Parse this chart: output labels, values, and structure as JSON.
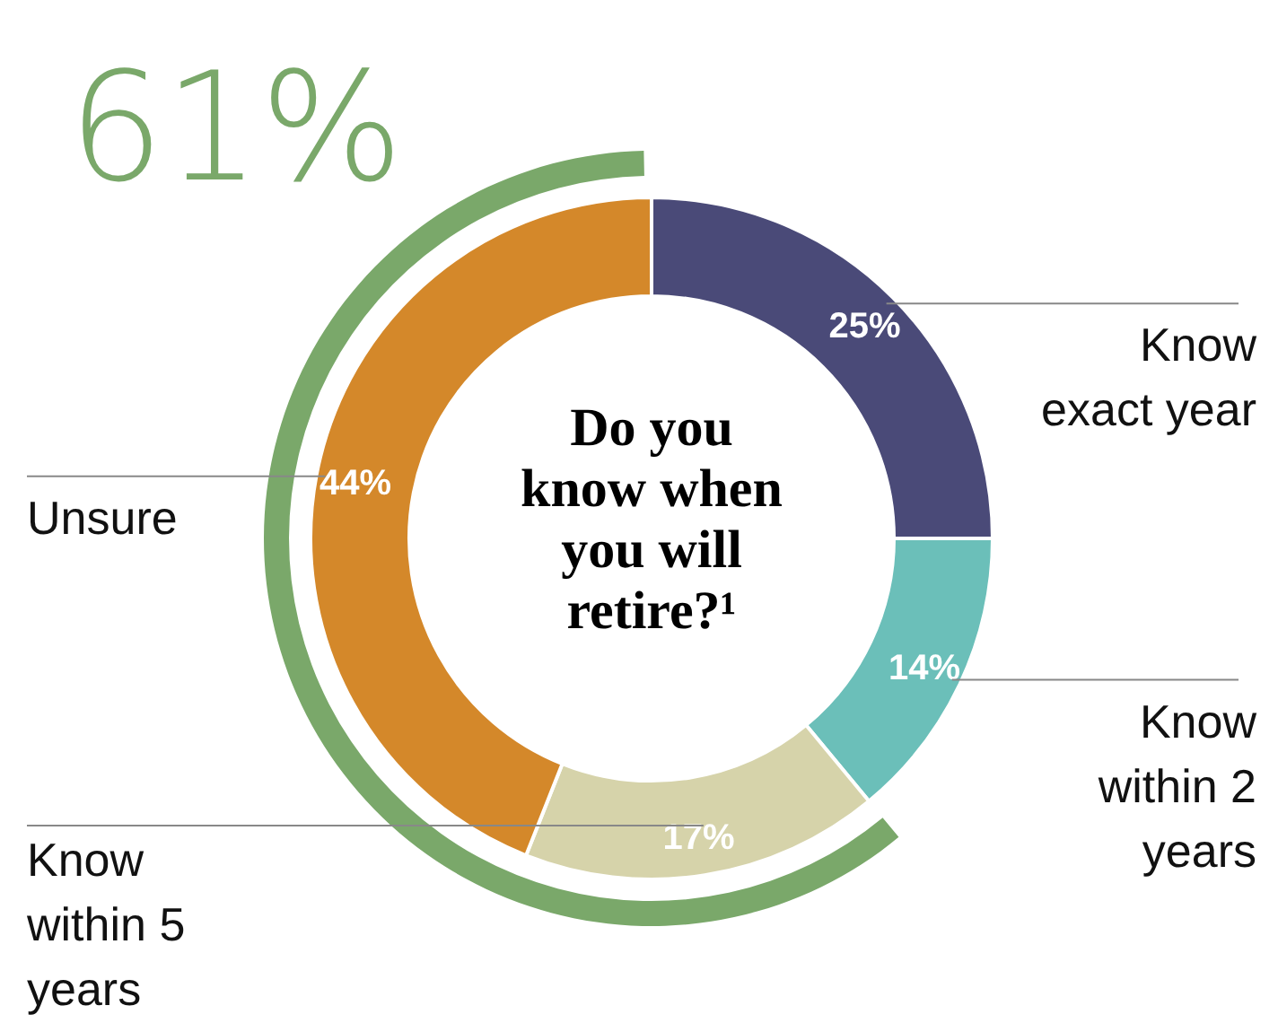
{
  "chart_data": {
    "type": "donut",
    "title": "Do you know when you will retire?¹",
    "categories": [
      "Know exact year",
      "Know within 2 years",
      "Know within 5 years",
      "Unsure"
    ],
    "values": [
      25,
      14,
      17,
      44
    ],
    "colors": [
      "#4a4a78",
      "#6bbfb9",
      "#d6d3aa",
      "#d4882a"
    ],
    "value_labels": [
      "25%",
      "14%",
      "17%",
      "44%"
    ],
    "annotations": [
      "61%"
    ]
  }
}
